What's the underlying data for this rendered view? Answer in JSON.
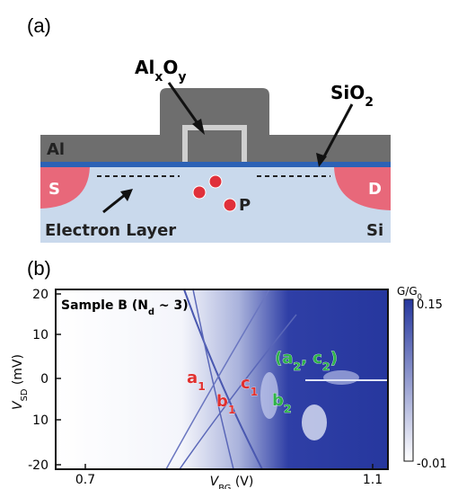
{
  "panel_a": {
    "label": "(a)",
    "labels": {
      "oxide": [
        {
          "text": "Al"
        },
        {
          "text": "x",
          "sub": true
        },
        {
          "text": "O"
        },
        {
          "text": "y",
          "sub": true
        }
      ],
      "sio2": [
        {
          "text": "SiO"
        },
        {
          "text": "2",
          "sub": true
        }
      ],
      "al": "Al",
      "source": "S",
      "drain": "D",
      "electron_layer": "Electron Layer",
      "si": "Si",
      "p": "P"
    }
  },
  "panel_b": {
    "label": "(b)",
    "title": [
      {
        "text": "Sample B (N"
      },
      {
        "text": "d",
        "sub": true
      },
      {
        "text": " ~ 3)"
      }
    ],
    "y_axis_label": [
      {
        "text": "V",
        "italic": true
      },
      {
        "text": "SD",
        "sub": true
      },
      {
        "text": " (mV)"
      }
    ],
    "x_axis_label": [
      {
        "text": "V",
        "italic": true
      },
      {
        "text": "BG",
        "sub": true
      },
      {
        "text": " (V)"
      }
    ],
    "yticks": [
      "20",
      "10",
      "0",
      "10",
      "-20"
    ],
    "xticks": [
      "0.7",
      "1.1"
    ],
    "colorbar": {
      "label": [
        {
          "text": "G/G"
        },
        {
          "text": "0",
          "sub": true
        }
      ],
      "max": "0.15",
      "min": "-0.01"
    },
    "annotations": [
      {
        "segs": [
          {
            "text": "a"
          },
          {
            "text": "1",
            "sub": true
          }
        ],
        "color": "#e0302f"
      },
      {
        "segs": [
          {
            "text": "b"
          },
          {
            "text": "1",
            "sub": true
          }
        ],
        "color": "#e0302f"
      },
      {
        "segs": [
          {
            "text": "c"
          },
          {
            "text": "1",
            "sub": true
          }
        ],
        "color": "#e0302f"
      },
      {
        "segs": [
          {
            "text": "(a"
          },
          {
            "text": "2",
            "sub": true
          },
          {
            "text": ", c"
          },
          {
            "text": "2",
            "sub": true
          },
          {
            "text": ")"
          }
        ],
        "color": "#2fb34a"
      },
      {
        "segs": [
          {
            "text": "b"
          },
          {
            "text": "2",
            "sub": true
          }
        ],
        "color": "#2fb34a"
      }
    ]
  }
}
